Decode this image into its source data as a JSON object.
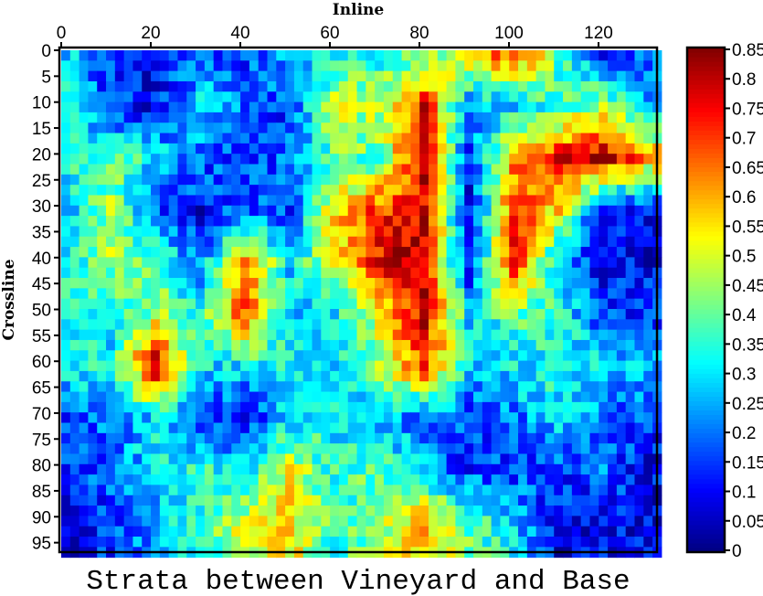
{
  "chart_data": {
    "type": "heatmap",
    "title": "Strata between Vineyard and Base",
    "xlabel": "Inline",
    "ylabel": "Crossline",
    "xlim": [
      0,
      133
    ],
    "ylim": [
      0,
      97
    ],
    "x_axis_position": "top",
    "y_axis_inverted": true,
    "xticks": [
      0,
      20,
      40,
      60,
      80,
      100,
      120
    ],
    "yticks": [
      0,
      5,
      10,
      15,
      20,
      25,
      30,
      35,
      40,
      45,
      50,
      55,
      60,
      65,
      70,
      75,
      80,
      85,
      90,
      95
    ],
    "colormap": "jet",
    "colorbar": {
      "range": [
        0,
        0.85
      ],
      "ticks": [
        "0",
        "0.05",
        "0.1",
        "0.15",
        "0.2",
        "0.25",
        "0.3",
        "0.35",
        "0.4",
        "0.45",
        "0.5",
        "0.55",
        "0.6",
        "0.65",
        "0.7",
        "0.75",
        "0.8",
        "0.85"
      ],
      "position": "right"
    },
    "grid": false,
    "sample_inlines": [
      0,
      10,
      20,
      30,
      40,
      50,
      60,
      70,
      80,
      90,
      100,
      110,
      120,
      130
    ],
    "sample_crosslines": [
      0,
      10,
      20,
      30,
      40,
      50,
      60,
      70,
      80,
      90
    ],
    "values_approx": [
      [
        0.3,
        0.15,
        0.1,
        0.2,
        0.15,
        0.25,
        0.3,
        0.35,
        0.4,
        0.55,
        0.7,
        0.4,
        0.1,
        0.2
      ],
      [
        0.3,
        0.15,
        0.1,
        0.3,
        0.2,
        0.15,
        0.5,
        0.45,
        0.75,
        0.2,
        0.3,
        0.35,
        0.5,
        0.25
      ],
      [
        0.35,
        0.4,
        0.3,
        0.2,
        0.15,
        0.2,
        0.4,
        0.4,
        0.8,
        0.15,
        0.6,
        0.75,
        0.8,
        0.6
      ],
      [
        0.25,
        0.45,
        0.2,
        0.1,
        0.2,
        0.15,
        0.55,
        0.7,
        0.75,
        0.1,
        0.7,
        0.55,
        0.1,
        0.1
      ],
      [
        0.3,
        0.45,
        0.4,
        0.2,
        0.65,
        0.3,
        0.5,
        0.75,
        0.8,
        0.1,
        0.75,
        0.25,
        0.1,
        0.1
      ],
      [
        0.35,
        0.3,
        0.45,
        0.35,
        0.7,
        0.25,
        0.3,
        0.5,
        0.8,
        0.3,
        0.4,
        0.35,
        0.15,
        0.15
      ],
      [
        0.35,
        0.3,
        0.8,
        0.3,
        0.3,
        0.35,
        0.3,
        0.45,
        0.7,
        0.3,
        0.3,
        0.35,
        0.3,
        0.25
      ],
      [
        0.15,
        0.2,
        0.3,
        0.15,
        0.1,
        0.3,
        0.3,
        0.25,
        0.2,
        0.15,
        0.2,
        0.3,
        0.2,
        0.15
      ],
      [
        0.15,
        0.2,
        0.3,
        0.35,
        0.3,
        0.5,
        0.35,
        0.4,
        0.25,
        0.15,
        0.15,
        0.15,
        0.2,
        0.1
      ],
      [
        0.1,
        0.15,
        0.25,
        0.35,
        0.5,
        0.55,
        0.35,
        0.45,
        0.6,
        0.4,
        0.3,
        0.1,
        0.1,
        0.1
      ]
    ]
  }
}
